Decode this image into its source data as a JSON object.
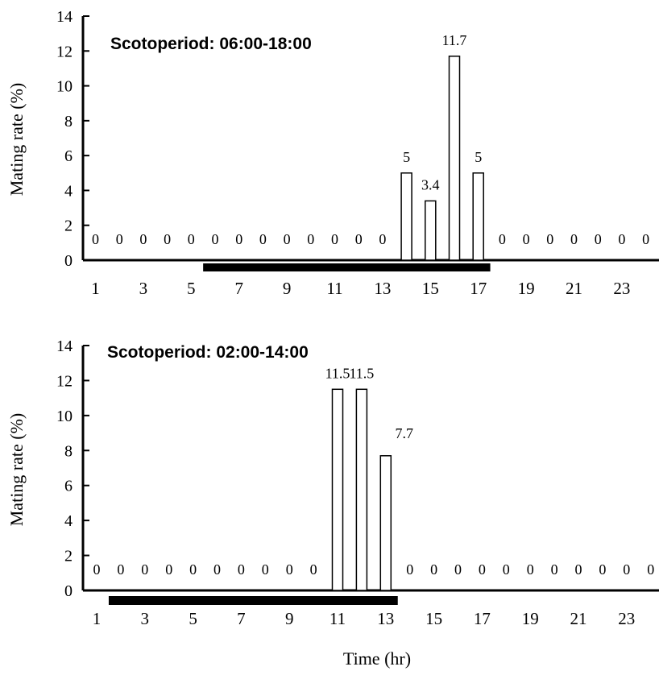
{
  "chart_data": [
    {
      "type": "bar",
      "title": "Scotoperiod: 06:00-18:00",
      "ylabel": "Mating rate (%)",
      "xlabel": "",
      "ylim": [
        0,
        14
      ],
      "yticks": [
        0,
        2,
        4,
        6,
        8,
        10,
        12,
        14
      ],
      "xticks": [
        1,
        3,
        5,
        7,
        9,
        11,
        13,
        15,
        17,
        19,
        21,
        23
      ],
      "categories": [
        1,
        2,
        3,
        4,
        5,
        6,
        7,
        8,
        9,
        10,
        11,
        12,
        13,
        14,
        15,
        16,
        17,
        18,
        19,
        20,
        21,
        22,
        23,
        24
      ],
      "values": [
        0,
        0,
        0,
        0,
        0,
        0,
        0,
        0,
        0,
        0,
        0,
        0,
        0,
        5,
        3.4,
        11.7,
        5,
        0,
        0,
        0,
        0,
        0,
        0,
        0
      ],
      "data_labels": [
        "0",
        "0",
        "0",
        "0",
        "0",
        "0",
        "0",
        "0",
        "0",
        "0",
        "0",
        "0",
        "0",
        "5",
        "3.4",
        "11.7",
        "5",
        "0",
        "0",
        "0",
        "0",
        "0",
        "0",
        "0"
      ],
      "dark_period": [
        5.5,
        17.5
      ],
      "grid": false
    },
    {
      "type": "bar",
      "title": "Scotoperiod: 02:00-14:00",
      "ylabel": "Mating rate (%)",
      "xlabel": "Time (hr)",
      "ylim": [
        0,
        14
      ],
      "yticks": [
        0,
        2,
        4,
        6,
        8,
        10,
        12,
        14
      ],
      "xticks": [
        1,
        3,
        5,
        7,
        9,
        11,
        13,
        15,
        17,
        19,
        21,
        23
      ],
      "categories": [
        1,
        2,
        3,
        4,
        5,
        6,
        7,
        8,
        9,
        10,
        11,
        12,
        13,
        14,
        15,
        16,
        17,
        18,
        19,
        20,
        21,
        22,
        23,
        24
      ],
      "values": [
        0,
        0,
        0,
        0,
        0,
        0,
        0,
        0,
        0,
        0,
        11.5,
        11.5,
        7.7,
        0,
        0,
        0,
        0,
        0,
        0,
        0,
        0,
        0,
        0,
        0
      ],
      "data_labels": [
        "0",
        "0",
        "0",
        "0",
        "0",
        "0",
        "0",
        "0",
        "0",
        "0",
        "11.5",
        "11.5",
        "7.7",
        "0",
        "0",
        "0",
        "0",
        "0",
        "0",
        "0",
        "0",
        "0",
        "0",
        "0"
      ],
      "dark_period": [
        1.5,
        13.5
      ],
      "grid": false
    }
  ]
}
